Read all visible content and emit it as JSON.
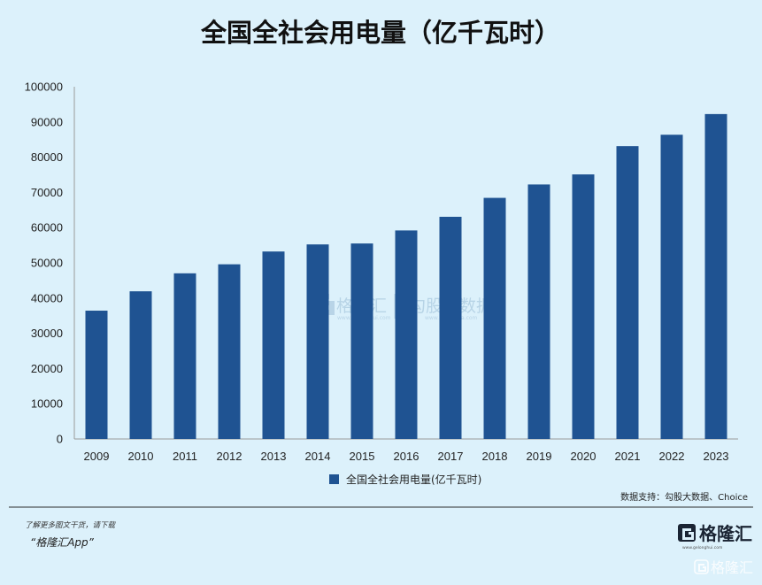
{
  "header": {
    "title": "全国全社会用电量（亿千瓦时）"
  },
  "chart_data": {
    "type": "bar",
    "title": "全国全社会用电量（亿千瓦时）",
    "xlabel": "",
    "ylabel": "",
    "categories": [
      "2009",
      "2010",
      "2011",
      "2012",
      "2013",
      "2014",
      "2015",
      "2016",
      "2017",
      "2018",
      "2019",
      "2020",
      "2021",
      "2022",
      "2023"
    ],
    "series": [
      {
        "name": "全国全社会用电量(亿千瓦时)",
        "values": [
          36430,
          41923,
          47026,
          49591,
          53223,
          55233,
          55500,
          59198,
          63077,
          68449,
          72255,
          75110,
          83128,
          86372,
          92241
        ]
      }
    ],
    "ylim": [
      0,
      100000
    ],
    "yticks": [
      "0",
      "10000",
      "20000",
      "30000",
      "40000",
      "50000",
      "60000",
      "70000",
      "80000",
      "90000",
      "100000"
    ],
    "grid": false,
    "legend_position": "bottom",
    "bar_color": "#1f5392"
  },
  "source_note": "数据支持：勾股大数据、Choice",
  "footer": {
    "promo_line": "了解更多图文干货，请下载",
    "app_line": "“格隆汇App”",
    "logo_name": "格隆汇",
    "logo_domain": "www.gelonghui.com"
  },
  "watermark": {
    "center_left": "格隆汇",
    "center_right": "勾股大数据",
    "center_sub_left": "www.gelonghui.com",
    "center_sub_right": "www.gogudata.com",
    "corner": "格隆汇"
  }
}
